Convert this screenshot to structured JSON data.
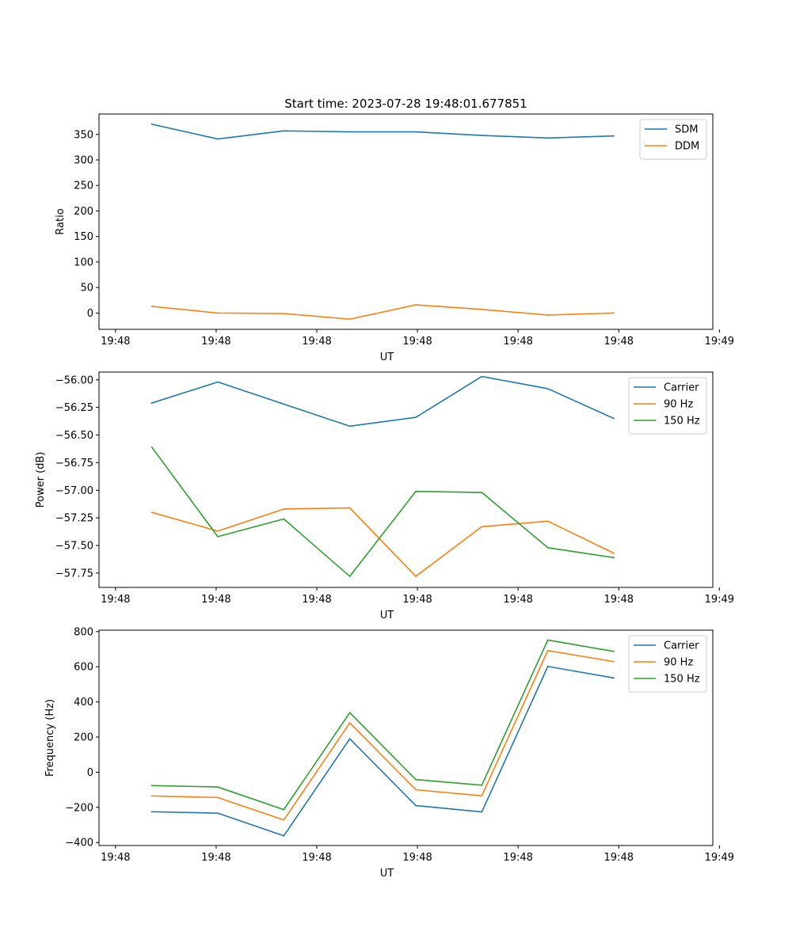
{
  "chart_data": [
    {
      "type": "line",
      "title": "Start time: 2023-07-28 19:48:01.677851",
      "xlabel": "UT",
      "ylabel": "Ratio",
      "x": [
        1,
        2,
        3,
        4,
        5,
        6,
        7,
        8
      ],
      "xlim": [
        0.2,
        9.5
      ],
      "xticks": [
        {
          "value": 0.45,
          "label": "19:48"
        },
        {
          "value": 1.975,
          "label": "19:48"
        },
        {
          "value": 3.5,
          "label": "19:48"
        },
        {
          "value": 5.025,
          "label": "19:48"
        },
        {
          "value": 6.55,
          "label": "19:48"
        },
        {
          "value": 8.075,
          "label": "19:48"
        },
        {
          "value": 9.6,
          "label": "19:49"
        }
      ],
      "ylim": [
        -32,
        390
      ],
      "yticks": [
        {
          "value": 0,
          "label": "0"
        },
        {
          "value": 50,
          "label": "50"
        },
        {
          "value": 100,
          "label": "100"
        },
        {
          "value": 150,
          "label": "150"
        },
        {
          "value": 200,
          "label": "200"
        },
        {
          "value": 250,
          "label": "250"
        },
        {
          "value": 300,
          "label": "300"
        },
        {
          "value": 350,
          "label": "350"
        }
      ],
      "legend_position": "top-right",
      "series": [
        {
          "name": "SDM",
          "color": "#1f77b4",
          "values": [
            370,
            341,
            357,
            355,
            355,
            348,
            343,
            347
          ]
        },
        {
          "name": "DDM",
          "color": "#ff7f0e",
          "values": [
            13,
            0,
            -1,
            -12,
            16,
            7,
            -4,
            0
          ]
        }
      ]
    },
    {
      "type": "line",
      "title": "",
      "xlabel": "UT",
      "ylabel": "Power (dB)",
      "x": [
        1,
        2,
        3,
        4,
        5,
        6,
        7,
        8
      ],
      "xlim": [
        0.2,
        9.5
      ],
      "xticks": [
        {
          "value": 0.45,
          "label": "19:48"
        },
        {
          "value": 1.975,
          "label": "19:48"
        },
        {
          "value": 3.5,
          "label": "19:48"
        },
        {
          "value": 5.025,
          "label": "19:48"
        },
        {
          "value": 6.55,
          "label": "19:48"
        },
        {
          "value": 8.075,
          "label": "19:48"
        },
        {
          "value": 9.6,
          "label": "19:49"
        }
      ],
      "ylim": [
        -57.88,
        -55.93
      ],
      "yticks": [
        {
          "value": -57.75,
          "label": "−57.75"
        },
        {
          "value": -57.5,
          "label": "−57.50"
        },
        {
          "value": -57.25,
          "label": "−57.25"
        },
        {
          "value": -57.0,
          "label": "−57.00"
        },
        {
          "value": -56.75,
          "label": "−56.75"
        },
        {
          "value": -56.5,
          "label": "−56.50"
        },
        {
          "value": -56.25,
          "label": "−56.25"
        },
        {
          "value": -56.0,
          "label": "−56.00"
        }
      ],
      "legend_position": "top-right",
      "series": [
        {
          "name": "Carrier",
          "color": "#1f77b4",
          "values": [
            -56.21,
            -56.02,
            -56.22,
            -56.42,
            -56.34,
            -55.97,
            -56.08,
            -56.35
          ]
        },
        {
          "name": "90 Hz",
          "color": "#ff7f0e",
          "values": [
            -57.2,
            -57.37,
            -57.17,
            -57.16,
            -57.78,
            -57.33,
            -57.28,
            -57.57
          ]
        },
        {
          "name": "150 Hz",
          "color": "#2ca02c",
          "values": [
            -56.61,
            -57.42,
            -57.26,
            -57.78,
            -57.01,
            -57.02,
            -57.52,
            -57.61
          ]
        }
      ]
    },
    {
      "type": "line",
      "title": "",
      "xlabel": "UT",
      "ylabel": "Frequency (Hz)",
      "x": [
        1,
        2,
        3,
        4,
        5,
        6,
        7,
        8
      ],
      "xlim": [
        0.2,
        9.5
      ],
      "xticks": [
        {
          "value": 0.45,
          "label": "19:48"
        },
        {
          "value": 1.975,
          "label": "19:48"
        },
        {
          "value": 3.5,
          "label": "19:48"
        },
        {
          "value": 5.025,
          "label": "19:48"
        },
        {
          "value": 6.55,
          "label": "19:48"
        },
        {
          "value": 8.075,
          "label": "19:48"
        },
        {
          "value": 9.6,
          "label": "19:49"
        }
      ],
      "ylim": [
        -417,
        808
      ],
      "yticks": [
        {
          "value": -400,
          "label": "−400"
        },
        {
          "value": -200,
          "label": "−200"
        },
        {
          "value": 0,
          "label": "0"
        },
        {
          "value": 200,
          "label": "200"
        },
        {
          "value": 400,
          "label": "400"
        },
        {
          "value": 600,
          "label": "600"
        },
        {
          "value": 800,
          "label": "800"
        }
      ],
      "legend_position": "top-right",
      "series": [
        {
          "name": "Carrier",
          "color": "#1f77b4",
          "values": [
            -225,
            -233,
            -362,
            190,
            -190,
            -226,
            602,
            536
          ]
        },
        {
          "name": "90 Hz",
          "color": "#ff7f0e",
          "values": [
            -135,
            -144,
            -272,
            281,
            -100,
            -134,
            692,
            629
          ]
        },
        {
          "name": "150 Hz",
          "color": "#2ca02c",
          "values": [
            -76,
            -84,
            -213,
            339,
            -42,
            -74,
            752,
            687
          ]
        }
      ]
    }
  ]
}
